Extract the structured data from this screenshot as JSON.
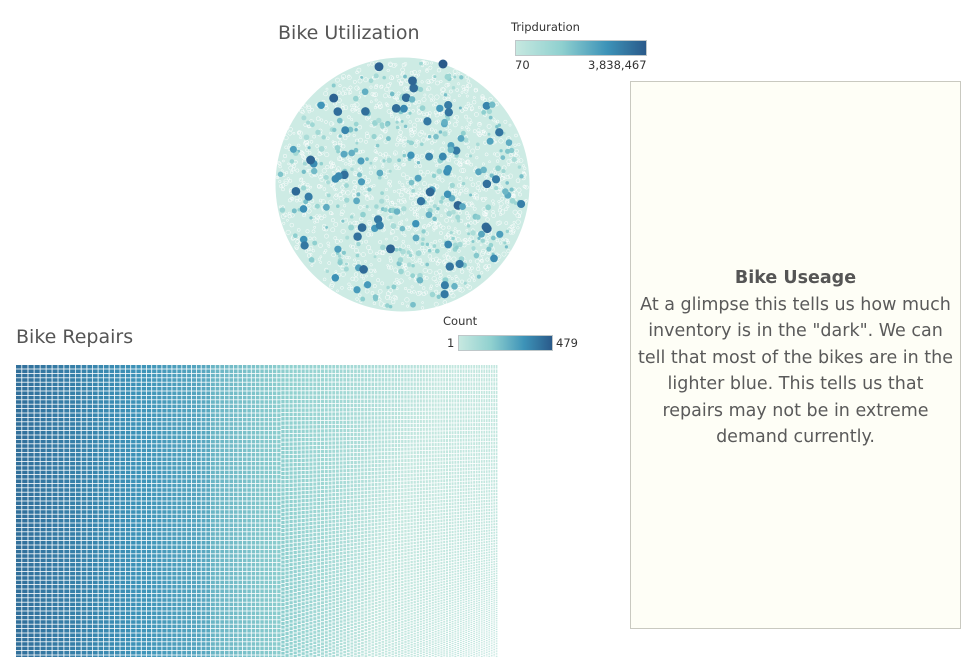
{
  "chart_data": [
    {
      "type": "packed-bubble",
      "title": "Bike Utilization",
      "color_legend": {
        "title": "Tripduration",
        "min_label": "70",
        "max_label": "3,838,467",
        "min": 70,
        "max": 3838467,
        "color_low": "#c6e8e0",
        "color_high": "#2a5a8a"
      }
    },
    {
      "type": "treemap",
      "title": "Bike Repairs",
      "color_legend": {
        "title": "Count",
        "min_label": "1",
        "max_label": "479",
        "min": 1,
        "max": 479,
        "color_low": "#c6e8e0",
        "color_high": "#2a5a8a"
      }
    }
  ],
  "textbox": {
    "heading": "Bike Useage",
    "body": "At a glimpse this tells us how much inventory is in the \"dark\". We can tell that most of the bikes are in the lighter blue. This tells us that repairs may not be in extreme demand currently."
  },
  "colors": {
    "scale_low": "#c6e8e0",
    "scale_high": "#2a5a8a",
    "textbox_bg": "#fefef6"
  }
}
